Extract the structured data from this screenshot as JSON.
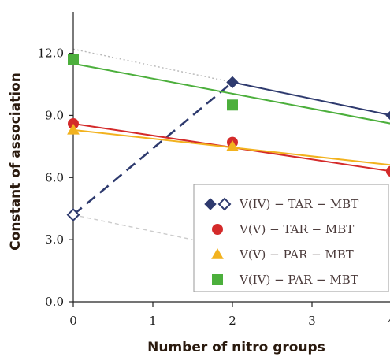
{
  "chart_data": {
    "type": "scatter",
    "xlabel": "Number of nitro groups",
    "ylabel": "Constant of association",
    "xlim": [
      0,
      4
    ],
    "ylim": [
      0,
      14
    ],
    "x_ticks": [
      "0",
      "1",
      "2",
      "3",
      "4"
    ],
    "y_ticks": [
      "0.0",
      "3.0",
      "6.0",
      "9.0",
      "12.0"
    ],
    "y_tick_values": [
      0,
      3,
      6,
      9,
      12
    ],
    "legend_position": "bottom-right",
    "series": [
      {
        "name": "V(IV) − TAR − MBT",
        "color": "#2e3a6e",
        "marker": "diamond",
        "points": [
          {
            "x": 0,
            "y": 4.2,
            "filled": false
          },
          {
            "x": 2,
            "y": 10.6,
            "filled": true
          },
          {
            "x": 4,
            "y": 9.0,
            "filled": true
          }
        ],
        "fit_line": {
          "x": [
            2,
            4
          ],
          "y": [
            10.6,
            9.0
          ],
          "style": "solid"
        },
        "dashed_line": {
          "x": [
            0,
            2
          ],
          "y": [
            4.2,
            10.6
          ],
          "style": "dashed"
        }
      },
      {
        "name": "V(V) − TAR − MBT",
        "color": "#d42a2a",
        "marker": "circle",
        "points": [
          {
            "x": 0,
            "y": 8.6
          },
          {
            "x": 2,
            "y": 7.7
          },
          {
            "x": 4,
            "y": 6.3
          }
        ],
        "fit_line": {
          "x": [
            0,
            4
          ],
          "y": [
            8.6,
            6.3
          ],
          "style": "solid"
        }
      },
      {
        "name": "V(V) − PAR − MBT",
        "color": "#f2b21e",
        "marker": "triangle",
        "points": [
          {
            "x": 0,
            "y": 8.3
          },
          {
            "x": 2,
            "y": 7.5
          }
        ],
        "fit_line": {
          "x": [
            0,
            4
          ],
          "y": [
            8.3,
            6.6
          ],
          "style": "solid"
        }
      },
      {
        "name": "V(IV) − PAR − MBT",
        "color": "#4caf3c",
        "marker": "square",
        "points": [
          {
            "x": 0,
            "y": 11.7
          },
          {
            "x": 2,
            "y": 9.5
          }
        ],
        "fit_line": {
          "x": [
            0,
            4
          ],
          "y": [
            11.5,
            8.6
          ],
          "style": "solid"
        }
      }
    ],
    "reference_lines": [
      {
        "x": [
          0,
          2
        ],
        "y": [
          12.2,
          10.6
        ],
        "style": "dotted",
        "color": "#b8b8b8"
      },
      {
        "x": [
          0,
          1.5
        ],
        "y": [
          4.2,
          3.0
        ],
        "style": "dashed",
        "color": "#cccccc"
      }
    ]
  }
}
